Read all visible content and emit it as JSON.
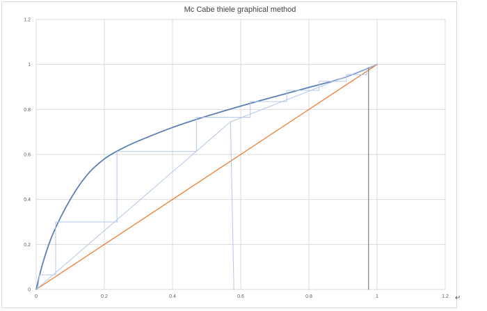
{
  "chart_data": {
    "type": "line",
    "title": "Mc Cabe thiele graphical method",
    "xlabel": "",
    "ylabel": "",
    "xlim": [
      0,
      1.2
    ],
    "ylim": [
      0,
      1.2
    ],
    "x_ticks": [
      "0",
      "0.2",
      "0.4",
      "0.6",
      "0.8",
      "1",
      "1.2"
    ],
    "y_ticks": [
      "0",
      "0.2",
      "0.4",
      "0.6",
      "0.8",
      "1",
      "1.2"
    ],
    "grid": true,
    "legend": "none",
    "series": [
      {
        "role": "equilibrium-curve",
        "color": "#5b7fb5",
        "x": [
          0,
          0.02,
          0.05,
          0.1,
          0.15,
          0.2,
          0.25,
          0.3,
          0.4,
          0.5,
          0.6,
          0.7,
          0.8,
          0.9,
          1.0
        ],
        "y": [
          0,
          0.12,
          0.25,
          0.4,
          0.51,
          0.58,
          0.625,
          0.66,
          0.72,
          0.77,
          0.815,
          0.857,
          0.898,
          0.94,
          1.0
        ]
      },
      {
        "role": "diagonal-line",
        "color": "#ed7d31",
        "x": [
          0,
          1
        ],
        "y": [
          0,
          1
        ]
      },
      {
        "role": "operating-line-lower",
        "color": "#b4c7e7",
        "x": [
          0,
          0.57
        ],
        "y": [
          0,
          0.745
        ]
      },
      {
        "role": "operating-line-upper",
        "color": "#b4c7e7",
        "x": [
          0.57,
          1
        ],
        "y": [
          0.745,
          1
        ]
      },
      {
        "role": "feed-line",
        "color": "#b4c7e7",
        "x": [
          0.57,
          0.58
        ],
        "y": [
          0.745,
          0
        ]
      },
      {
        "role": "distillate-line",
        "color": "#7f7f7f",
        "x": [
          0.975,
          0.975
        ],
        "y": [
          0,
          0.985
        ]
      },
      {
        "role": "stages",
        "color": "#b4c7e7",
        "x": [
          0.005,
          0.01,
          0.05,
          0.057,
          0.057,
          0.24,
          0.237,
          0.237,
          0.47,
          0.47,
          0.628,
          0.628,
          0.735,
          0.735,
          0.83,
          0.83,
          0.91,
          0.91,
          0.97,
          0.97
        ],
        "y": [
          0.005,
          0.065,
          0.065,
          0.065,
          0.3,
          0.3,
          0.3,
          0.613,
          0.613,
          0.765,
          0.765,
          0.835,
          0.835,
          0.885,
          0.885,
          0.925,
          0.925,
          0.955,
          0.955,
          0.985
        ]
      }
    ]
  },
  "return_glyph": "↵"
}
